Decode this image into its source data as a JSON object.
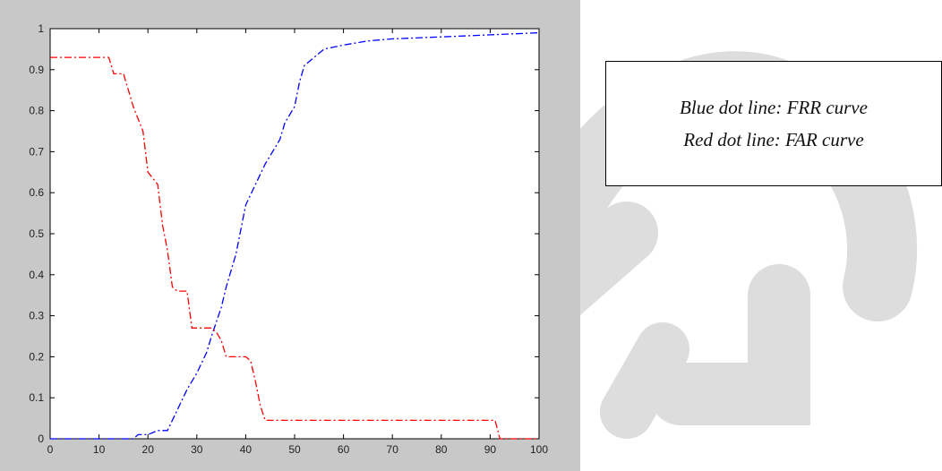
{
  "chart_data": {
    "type": "line",
    "xlim": [
      0,
      100
    ],
    "ylim": [
      0,
      1
    ],
    "x_ticks": [
      0,
      10,
      20,
      30,
      40,
      50,
      60,
      70,
      80,
      90,
      100
    ],
    "y_ticks": [
      "0",
      "0.1",
      "0.2",
      "0.3",
      "0.4",
      "0.5",
      "0.6",
      "0.7",
      "0.8",
      "0.9",
      "1"
    ],
    "grid": false,
    "series": [
      {
        "name": "FRR curve",
        "color": "#0000ff",
        "linestyle": "dash-dot",
        "points": [
          [
            0,
            0
          ],
          [
            17,
            0
          ],
          [
            18,
            0.01
          ],
          [
            20,
            0.01
          ],
          [
            22,
            0.02
          ],
          [
            24,
            0.02
          ],
          [
            26,
            0.07
          ],
          [
            28,
            0.12
          ],
          [
            30,
            0.16
          ],
          [
            32,
            0.21
          ],
          [
            33,
            0.25
          ],
          [
            35,
            0.32
          ],
          [
            36,
            0.37
          ],
          [
            38,
            0.45
          ],
          [
            40,
            0.57
          ],
          [
            42,
            0.62
          ],
          [
            44,
            0.67
          ],
          [
            46,
            0.71
          ],
          [
            47,
            0.73
          ],
          [
            48,
            0.77
          ],
          [
            50,
            0.81
          ],
          [
            51,
            0.87
          ],
          [
            52,
            0.91
          ],
          [
            54,
            0.93
          ],
          [
            56,
            0.95
          ],
          [
            60,
            0.96
          ],
          [
            65,
            0.97
          ],
          [
            70,
            0.975
          ],
          [
            80,
            0.98
          ],
          [
            90,
            0.985
          ],
          [
            100,
            0.99
          ]
        ]
      },
      {
        "name": "FAR curve",
        "color": "#ff0000",
        "linestyle": "dash-dot",
        "points": [
          [
            0,
            0.93
          ],
          [
            12,
            0.93
          ],
          [
            13,
            0.89
          ],
          [
            15,
            0.89
          ],
          [
            16,
            0.85
          ],
          [
            17,
            0.81
          ],
          [
            19,
            0.75
          ],
          [
            20,
            0.65
          ],
          [
            22,
            0.62
          ],
          [
            23,
            0.52
          ],
          [
            24,
            0.46
          ],
          [
            25,
            0.37
          ],
          [
            26,
            0.36
          ],
          [
            28,
            0.36
          ],
          [
            29,
            0.27
          ],
          [
            33,
            0.27
          ],
          [
            34,
            0.26
          ],
          [
            35,
            0.24
          ],
          [
            36,
            0.2
          ],
          [
            40,
            0.2
          ],
          [
            41,
            0.19
          ],
          [
            42,
            0.14
          ],
          [
            43,
            0.08
          ],
          [
            44,
            0.045
          ],
          [
            91,
            0.045
          ],
          [
            92,
            0.0
          ],
          [
            100,
            0.0
          ]
        ]
      }
    ],
    "legend": {
      "position": "right-of-plot",
      "lines": [
        "Blue dot line: FRR curve",
        "Red dot line: FAR curve"
      ]
    }
  },
  "colors": {
    "frame": "#c8c8c8",
    "axes_bg": "#ffffff",
    "watermark": "#d8d8d8"
  }
}
